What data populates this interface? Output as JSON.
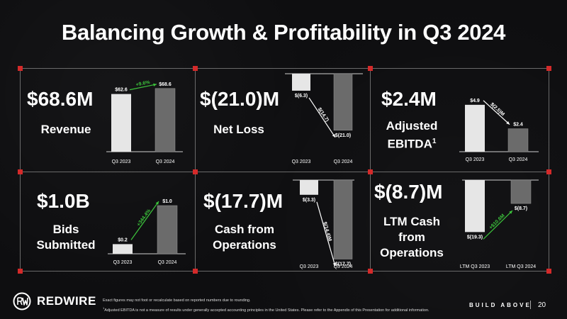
{
  "title": "Balancing Growth & Profitability in Q3 2024",
  "panels": [
    {
      "headline": "$68.6M",
      "label_lines": [
        "Revenue"
      ],
      "chart_data": {
        "type": "bar",
        "categories": [
          "Q3 2023",
          "Q3 2024"
        ],
        "values": [
          62.6,
          68.6
        ],
        "value_labels": [
          "$62.6",
          "$68.6"
        ],
        "change_label": "+9.6%",
        "change_color": "#3cc43c"
      }
    },
    {
      "headline": "$(21.0)M",
      "label_lines": [
        "Net Loss"
      ],
      "chart_data": {
        "type": "bar",
        "categories": [
          "Q3 2023",
          "Q3 2024"
        ],
        "values": [
          -6.3,
          -21.0
        ],
        "value_labels": [
          "$(6.3)",
          "$(21.0)"
        ],
        "change_label": "$(14.7)",
        "change_color": "#ffffff"
      }
    },
    {
      "headline": "$2.4M",
      "label_lines": [
        "Adjusted",
        "EBITDA"
      ],
      "label_sup": "1",
      "chart_data": {
        "type": "bar",
        "categories": [
          "Q3 2023",
          "Q3 2024"
        ],
        "values": [
          4.9,
          2.4
        ],
        "value_labels": [
          "$4.9",
          "$2.4"
        ],
        "change_label": "$(2.5)M",
        "change_color": "#ffffff"
      }
    },
    {
      "headline": "$1.0B",
      "label_lines": [
        "Bids",
        "Submitted"
      ],
      "chart_data": {
        "type": "bar",
        "categories": [
          "Q3 2023",
          "Q3 2024"
        ],
        "values": [
          0.2,
          1.0
        ],
        "value_labels": [
          "$0.2",
          "$1.0"
        ],
        "change_label": "+344.4%",
        "change_color": "#3cc43c"
      }
    },
    {
      "headline": "$(17.7)M",
      "label_lines": [
        "Cash from",
        "Operations"
      ],
      "chart_data": {
        "type": "bar",
        "categories": [
          "Q3 2023",
          "Q3 2024"
        ],
        "values": [
          -3.3,
          -17.7
        ],
        "value_labels": [
          "$(3.3)",
          "$(17.7)"
        ],
        "change_label": "$(14.4)M",
        "change_color": "#ffffff"
      }
    },
    {
      "headline": "$(8.7)M",
      "label_lines": [
        "LTM Cash",
        "from",
        "Operations"
      ],
      "chart_data": {
        "type": "bar",
        "categories": [
          "LTM Q3 2023",
          "LTM Q3 2024"
        ],
        "values": [
          -19.3,
          -8.7
        ],
        "value_labels": [
          "$(19.3)",
          "$(8.7)"
        ],
        "change_label": "+$10.6M",
        "change_color": "#3cc43c"
      }
    }
  ],
  "colors": {
    "bar_2023": "#e6e6e6",
    "bar_2024": "#6b6b6b",
    "grid": "#6a6a6a",
    "corner": "#d42a2a"
  },
  "footer": {
    "logo_text": "REDWIRE",
    "logo_icon": "redwire-logo-icon",
    "note1": "Exact figures may not foot or recalculate based on reported numbers due to rounding.",
    "note2_sup": "1",
    "note2": "Adjusted EBITDA is not a measure of results under generally accepted accounting principles in the United States. Please refer to the Appendix of this Presentation for additional information.",
    "tagline": "BUILD ABOVE",
    "page": "20"
  }
}
